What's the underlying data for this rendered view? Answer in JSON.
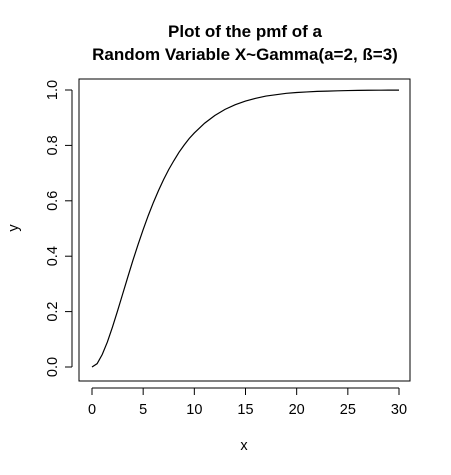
{
  "chart_data": {
    "type": "line",
    "title": "Plot of the pmf of a",
    "subtitle": "Random Variable X~Gamma(a=2, ß=3)",
    "xlabel": "x",
    "ylabel": "y",
    "xlim": [
      0,
      30
    ],
    "ylim": [
      0,
      1
    ],
    "x_ticks": [
      0,
      5,
      10,
      15,
      20,
      25,
      30
    ],
    "y_ticks": [
      0.0,
      0.2,
      0.4,
      0.6,
      0.8,
      1.0
    ],
    "x_tick_labels": [
      "0",
      "5",
      "10",
      "15",
      "20",
      "25",
      "30"
    ],
    "y_tick_labels": [
      "0.0",
      "0.2",
      "0.4",
      "0.6",
      "0.8",
      "1.0"
    ],
    "grid": false,
    "series": [
      {
        "x": [
          0,
          0.5,
          1,
          1.5,
          2,
          2.5,
          3,
          3.5,
          4,
          4.5,
          5,
          5.5,
          6,
          6.5,
          7,
          7.5,
          8,
          8.5,
          9,
          9.5,
          10,
          11,
          12,
          13,
          14,
          15,
          16,
          17,
          18,
          19,
          20,
          21,
          22,
          23,
          24,
          25,
          26,
          27,
          28,
          29,
          30
        ],
        "y": [
          0,
          0.012,
          0.045,
          0.09,
          0.144,
          0.203,
          0.264,
          0.325,
          0.385,
          0.442,
          0.496,
          0.547,
          0.594,
          0.637,
          0.677,
          0.713,
          0.745,
          0.775,
          0.801,
          0.825,
          0.845,
          0.88,
          0.908,
          0.93,
          0.947,
          0.96,
          0.97,
          0.978,
          0.983,
          0.988,
          0.991,
          0.993,
          0.995,
          0.996,
          0.997,
          0.998,
          0.9986,
          0.999,
          0.9993,
          0.9995,
          0.9996
        ],
        "color": "#000000"
      }
    ]
  }
}
